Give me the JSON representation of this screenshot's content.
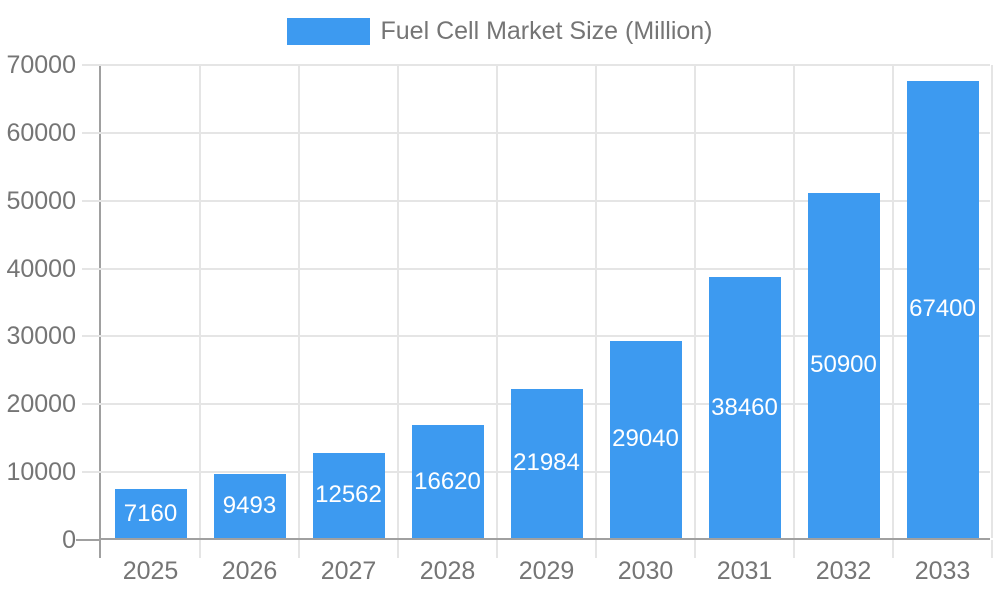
{
  "chart_data": {
    "type": "bar",
    "title": "Fuel Cell Market Size (Million)",
    "legend": {
      "label": "Fuel Cell Market Size (Million)",
      "position": "top-center"
    },
    "categories": [
      "2025",
      "2026",
      "2027",
      "2028",
      "2029",
      "2030",
      "2031",
      "2032",
      "2033"
    ],
    "series": [
      {
        "name": "Fuel Cell Market Size (Million)",
        "values": [
          7160,
          9493,
          12562,
          16620,
          21984,
          29040,
          38460,
          50900,
          67400
        ]
      }
    ],
    "xlabel": "",
    "ylabel": "",
    "ylim": [
      0,
      70000
    ],
    "ytick_step": 10000,
    "ytick_labels": [
      "0",
      "10000",
      "20000",
      "30000",
      "40000",
      "50000",
      "60000",
      "70000"
    ],
    "grid": "horizontal-and-vertical",
    "data_labels": {
      "position": "inside-center",
      "color": "#ffffff"
    },
    "colors": {
      "bar": "#3D9AF0",
      "axis_line": "#A0A0A0",
      "gridline": "#E5E5E5",
      "tick_label": "#757575",
      "background": "#ffffff"
    }
  }
}
